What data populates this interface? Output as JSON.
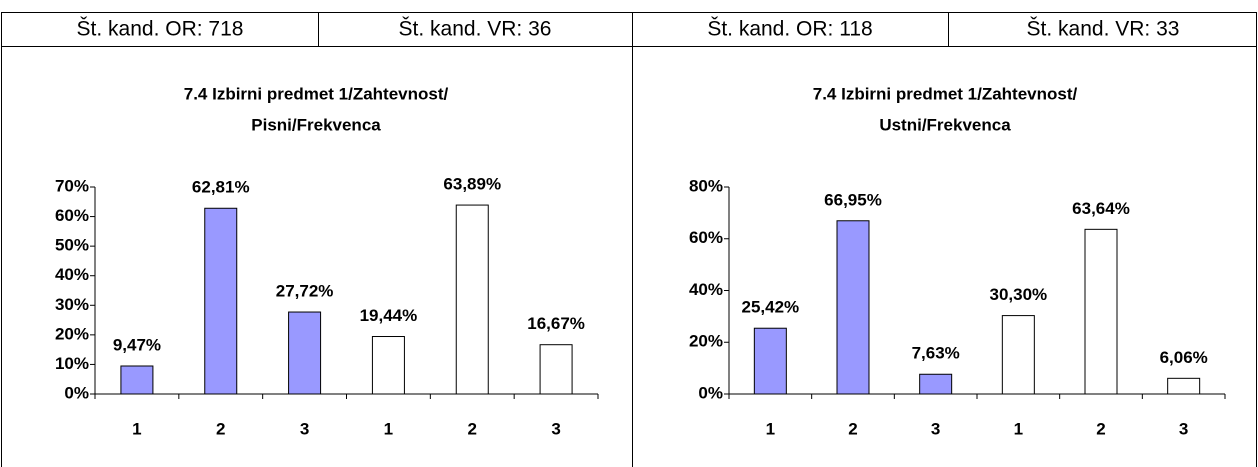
{
  "headers": [
    "Št. kand. OR: 718",
    "Št. kand. VR: 36",
    "Št. kand. OR: 118",
    "Št. kand. VR: 33"
  ],
  "chart_data": [
    {
      "type": "bar",
      "title": [
        "7.4 Izbirni predmet 1/Zahtevnost/",
        "Pisni/Frekvenca"
      ],
      "categories": [
        "1",
        "2",
        "3",
        "1",
        "2",
        "3"
      ],
      "values": [
        9.47,
        62.81,
        27.72,
        19.44,
        63.89,
        16.67
      ],
      "value_labels": [
        "9,47%",
        "62,81%",
        "27,72%",
        "19,44%",
        "63,89%",
        "16,67%"
      ],
      "colors": [
        "#9999ff",
        "#9999ff",
        "#9999ff",
        "#ffffff",
        "#ffffff",
        "#ffffff"
      ],
      "ylim": [
        0,
        70
      ],
      "yticks": [
        {
          "value": 0,
          "label": "0%"
        },
        {
          "value": 10,
          "label": "10%"
        },
        {
          "value": 20,
          "label": "20%"
        },
        {
          "value": 30,
          "label": "30%"
        },
        {
          "value": 40,
          "label": "40%"
        },
        {
          "value": 50,
          "label": "50%"
        },
        {
          "value": 60,
          "label": "60%"
        },
        {
          "value": 70,
          "label": "70%"
        }
      ]
    },
    {
      "type": "bar",
      "title": [
        "7.4 Izbirni predmet 1/Zahtevnost/",
        "Ustni/Frekvenca"
      ],
      "categories": [
        "1",
        "2",
        "3",
        "1",
        "2",
        "3"
      ],
      "values": [
        25.42,
        66.95,
        7.63,
        30.3,
        63.64,
        6.06
      ],
      "value_labels": [
        "25,42%",
        "66,95%",
        "7,63%",
        "30,30%",
        "63,64%",
        "6,06%"
      ],
      "colors": [
        "#9999ff",
        "#9999ff",
        "#9999ff",
        "#ffffff",
        "#ffffff",
        "#ffffff"
      ],
      "ylim": [
        0,
        80
      ],
      "yticks": [
        {
          "value": 0,
          "label": "0%"
        },
        {
          "value": 20,
          "label": "20%"
        },
        {
          "value": 40,
          "label": "40%"
        },
        {
          "value": 60,
          "label": "60%"
        },
        {
          "value": 80,
          "label": "80%"
        }
      ]
    }
  ]
}
